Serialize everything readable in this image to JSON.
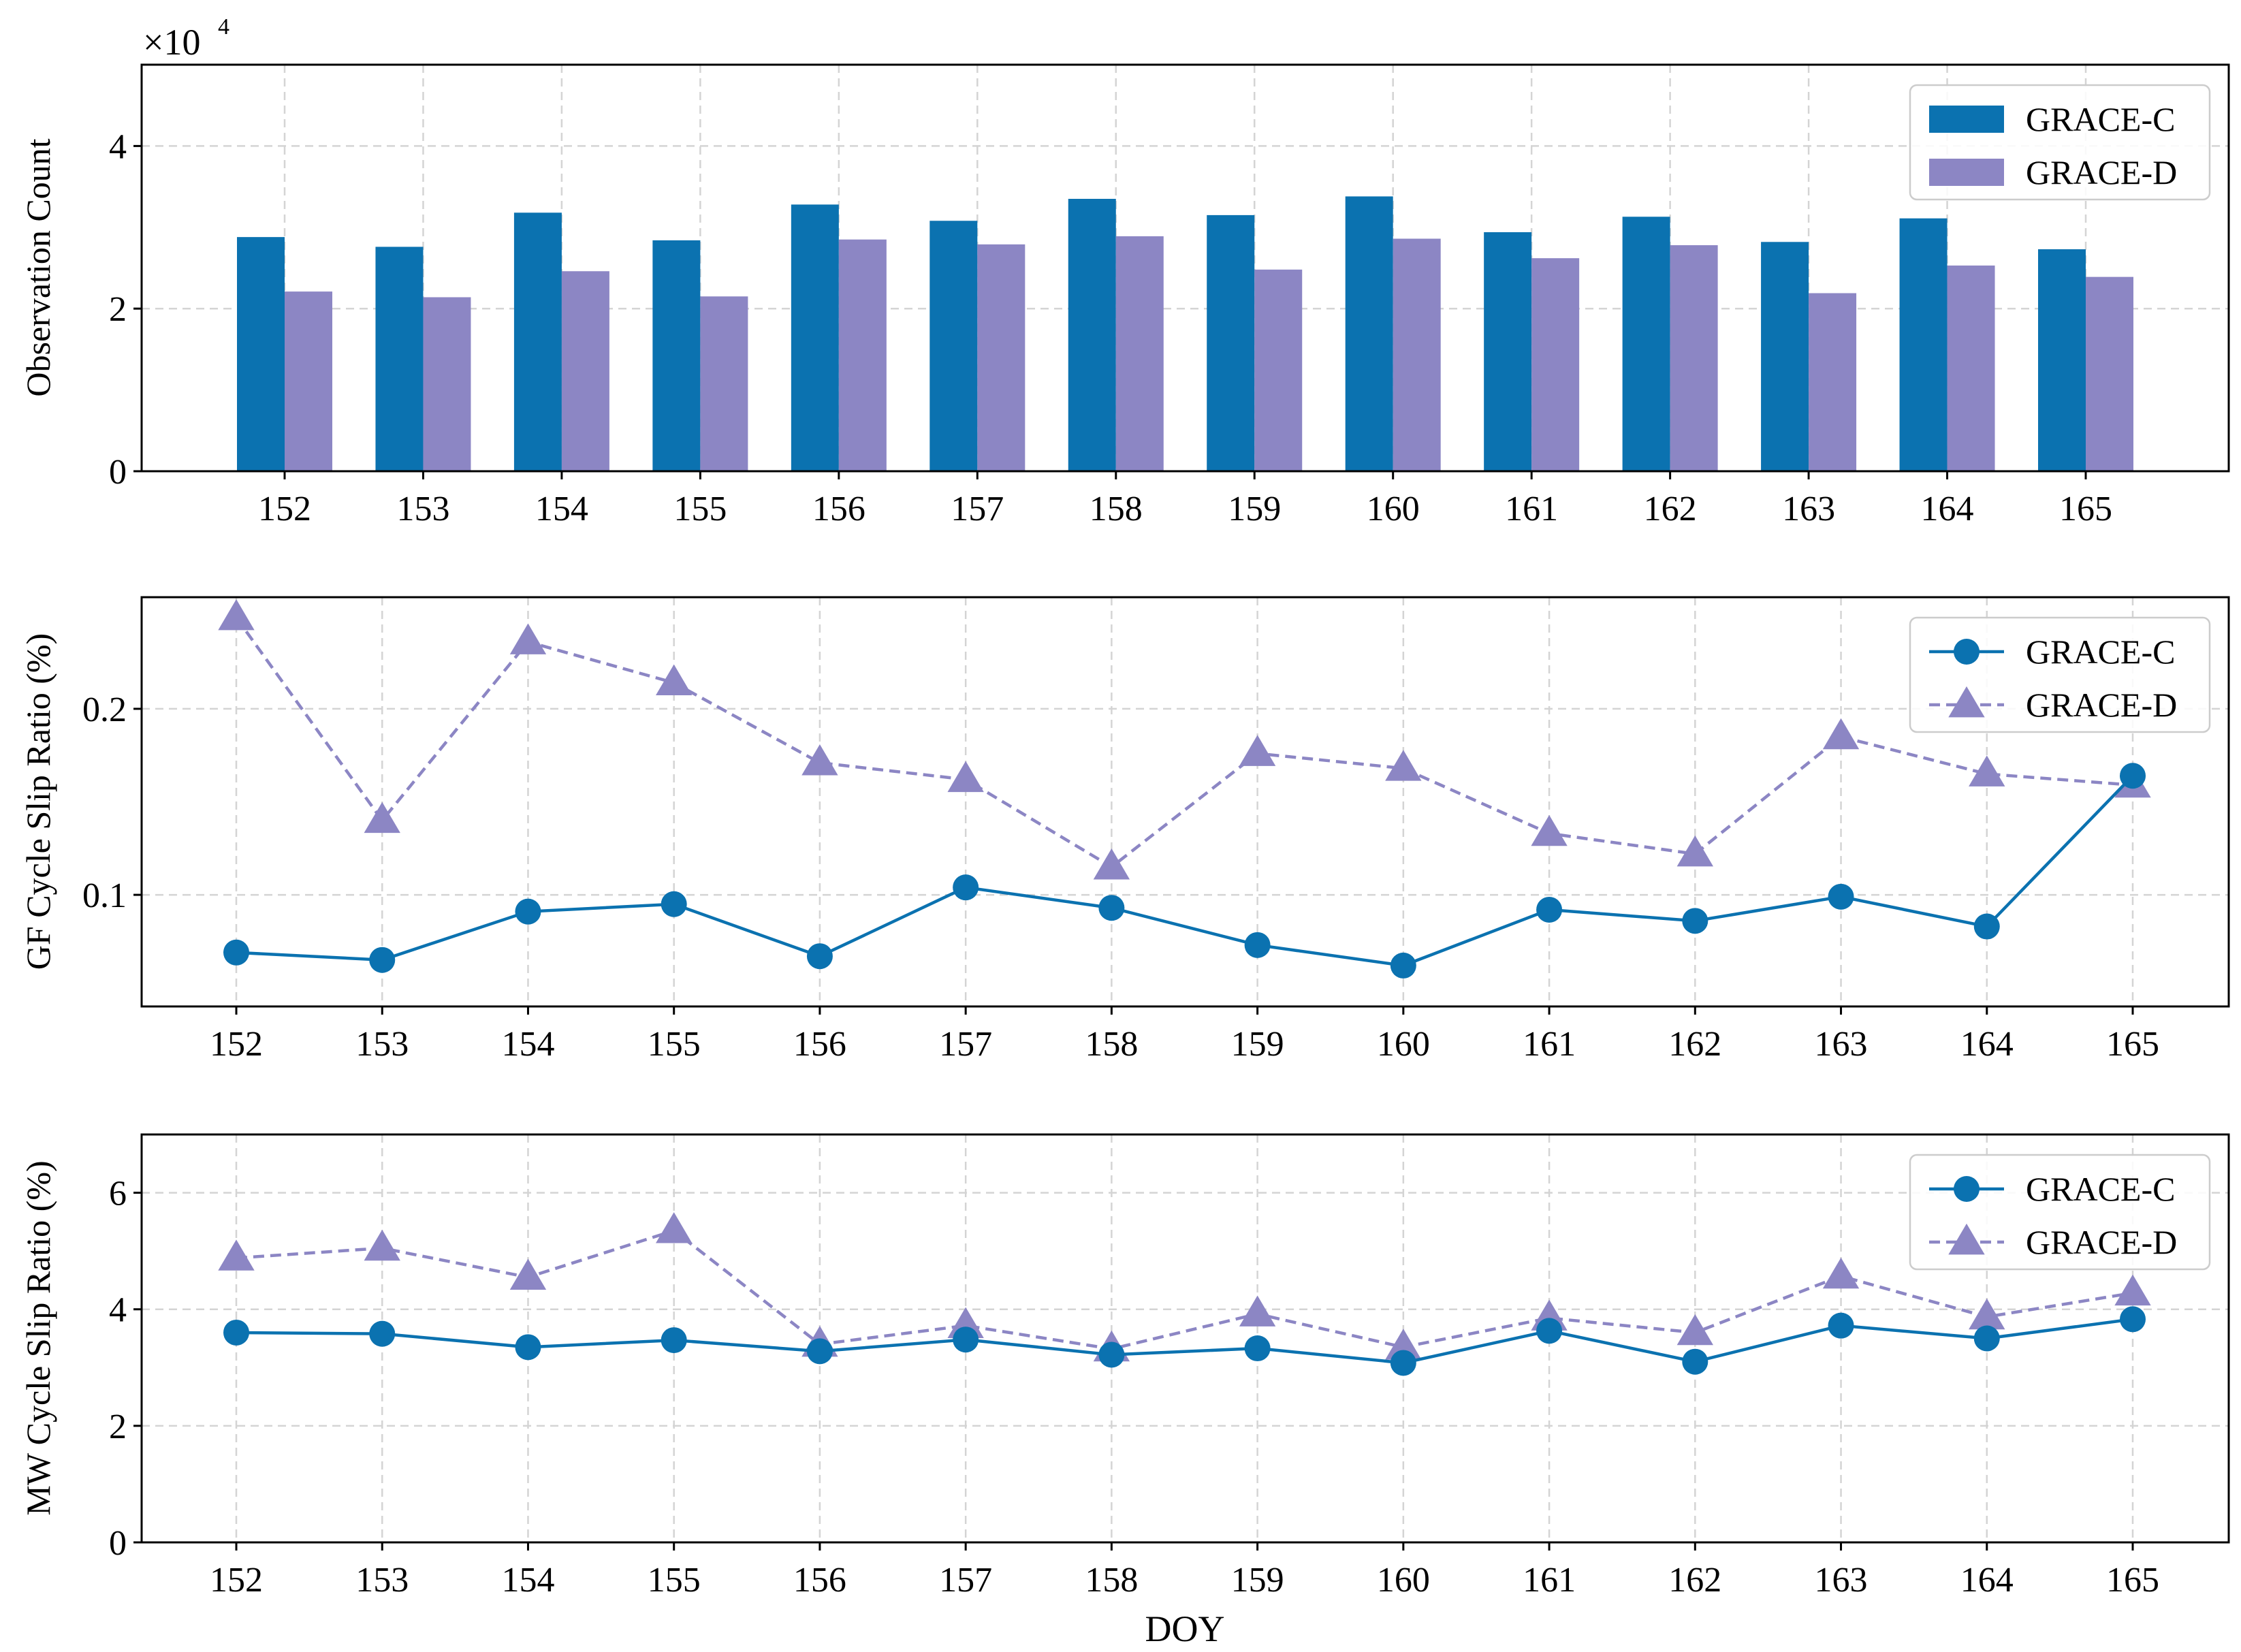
{
  "colors": {
    "grace_c": "#0b72b0",
    "grace_d": "#8c86c4",
    "grid": "#d4d4d4"
  },
  "chart_data": [
    {
      "type": "bar",
      "categories": [
        "152",
        "153",
        "154",
        "155",
        "156",
        "157",
        "158",
        "159",
        "160",
        "161",
        "162",
        "163",
        "164",
        "165"
      ],
      "series": [
        {
          "name": "GRACE-C",
          "values": [
            28800,
            27600,
            31800,
            28400,
            32800,
            30800,
            33500,
            31500,
            33800,
            29400,
            31300,
            28200,
            31100,
            27300
          ]
        },
        {
          "name": "GRACE-D",
          "values": [
            22100,
            21400,
            24600,
            21500,
            28500,
            27900,
            28900,
            24800,
            28600,
            26200,
            27800,
            21900,
            25300,
            23900
          ]
        }
      ],
      "ylabel": "Observation Count",
      "ylim": [
        0,
        50000
      ],
      "yticks": [
        0,
        20000,
        40000
      ],
      "ytick_labels": [
        "0",
        "2",
        "4"
      ],
      "multiplier": "×10",
      "multiplier_exp": "4",
      "legend": "top-right",
      "grid": true
    },
    {
      "type": "line",
      "x": [
        "152",
        "153",
        "154",
        "155",
        "156",
        "157",
        "158",
        "159",
        "160",
        "161",
        "162",
        "163",
        "164",
        "165"
      ],
      "series": [
        {
          "name": "GRACE-C",
          "values": [
            0.069,
            0.065,
            0.091,
            0.095,
            0.067,
            0.104,
            0.093,
            0.073,
            0.062,
            0.092,
            0.086,
            0.099,
            0.083,
            0.164
          ]
        },
        {
          "name": "GRACE-D",
          "values": [
            0.249,
            0.14,
            0.236,
            0.214,
            0.171,
            0.162,
            0.115,
            0.176,
            0.168,
            0.133,
            0.122,
            0.185,
            0.165,
            0.159
          ]
        }
      ],
      "ylabel": "GF Cycle Slip Ratio (%)",
      "ylim": [
        0.04,
        0.26
      ],
      "yticks": [
        0.1,
        0.2
      ],
      "ytick_labels": [
        "0.1",
        "0.2"
      ],
      "legend": "top-right",
      "grid": true
    },
    {
      "type": "line",
      "x": [
        "152",
        "153",
        "154",
        "155",
        "156",
        "157",
        "158",
        "159",
        "160",
        "161",
        "162",
        "163",
        "164",
        "165"
      ],
      "series": [
        {
          "name": "GRACE-C",
          "values": [
            3.6,
            3.58,
            3.35,
            3.47,
            3.28,
            3.48,
            3.22,
            3.33,
            3.08,
            3.63,
            3.1,
            3.72,
            3.5,
            3.83
          ]
        },
        {
          "name": "GRACE-D",
          "values": [
            4.88,
            5.05,
            4.55,
            5.35,
            3.4,
            3.72,
            3.32,
            3.92,
            3.35,
            3.85,
            3.6,
            4.57,
            3.87,
            4.28
          ]
        }
      ],
      "ylabel": "MW Cycle Slip Ratio (%)",
      "xlabel": "DOY",
      "ylim": [
        0,
        7
      ],
      "yticks": [
        0,
        2,
        4,
        6
      ],
      "ytick_labels": [
        "0",
        "2",
        "4",
        "6"
      ],
      "legend": "top-right",
      "grid": true
    }
  ]
}
